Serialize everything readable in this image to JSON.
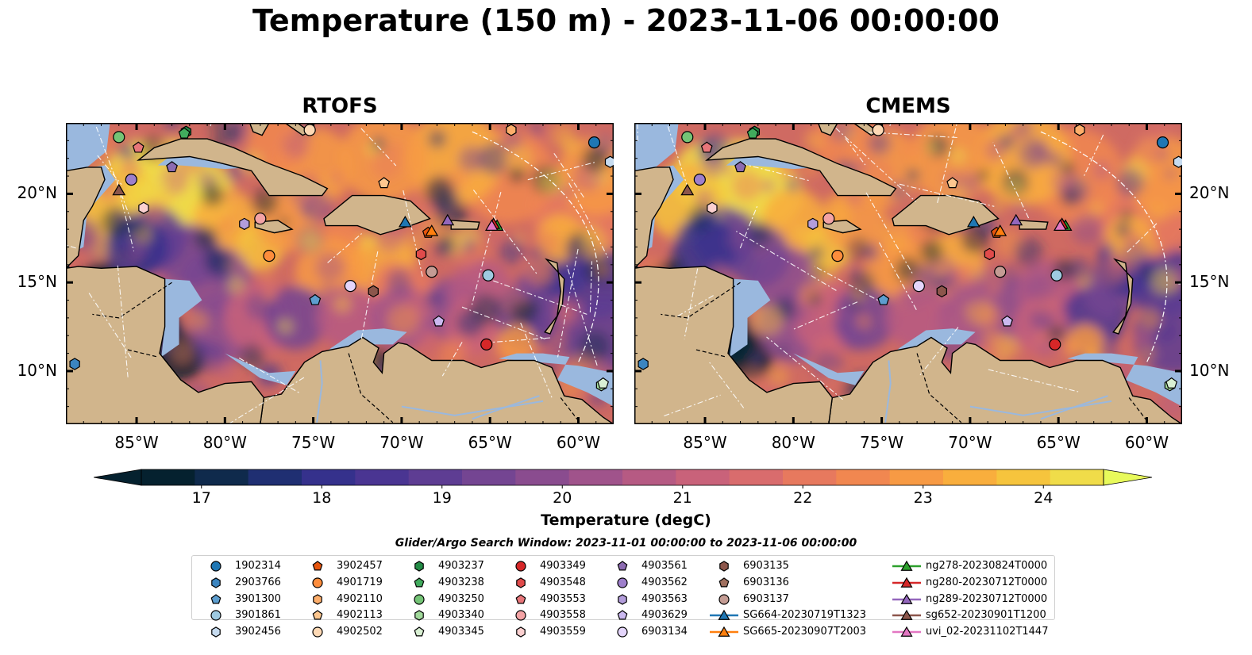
{
  "title": "Temperature (150 m) - 2023-11-06 00:00:00",
  "panels": [
    {
      "title": "RTOFS"
    },
    {
      "title": "CMEMS"
    }
  ],
  "axes": {
    "lon_ticks": [
      "85°W",
      "80°W",
      "75°W",
      "70°W",
      "65°W",
      "60°W"
    ],
    "lat_ticks": [
      "20°N",
      "15°N",
      "10°N"
    ],
    "lon_range": [
      -89,
      -58
    ],
    "lat_range": [
      7,
      24
    ]
  },
  "colorbar": {
    "label": "Temperature (degC)",
    "ticks": [
      "17",
      "18",
      "19",
      "20",
      "21",
      "22",
      "23",
      "24"
    ],
    "range": [
      16.5,
      24.5
    ],
    "colors": [
      "#05212f",
      "#0f2a4c",
      "#1f2f72",
      "#35318c",
      "#4a3592",
      "#5e3d93",
      "#744592",
      "#8a4c8f",
      "#a0538b",
      "#b65a83",
      "#c9627a",
      "#d96c6d",
      "#e7795e",
      "#f18750",
      "#f79a44",
      "#f9ae3d",
      "#f6c43d",
      "#f0dc49"
    ],
    "extend_over_color": "#e8fa5b"
  },
  "map_colors": {
    "land": "#d1b58c",
    "shelf": "#9ab8de",
    "coast": "#000000",
    "track": "#ffffff"
  },
  "search_window": "Glider/Argo Search Window: 2023-11-01 00:00:00 to 2023-11-06 00:00:00",
  "legend": [
    {
      "label": "1902314",
      "marker": "circle",
      "color": "#1f77b4"
    },
    {
      "label": "2903766",
      "marker": "hexagon",
      "color": "#3b85c0"
    },
    {
      "label": "3901300",
      "marker": "pentagon",
      "color": "#5d9ecf"
    },
    {
      "label": "3901861",
      "marker": "circle",
      "color": "#9ecae1"
    },
    {
      "label": "3902456",
      "marker": "hexagon",
      "color": "#c6dbef"
    },
    {
      "label": "3902457",
      "marker": "pentagon",
      "color": "#e6550d"
    },
    {
      "label": "4901719",
      "marker": "circle",
      "color": "#fd8d3c"
    },
    {
      "label": "4902110",
      "marker": "hexagon",
      "color": "#fdae6b"
    },
    {
      "label": "4902113",
      "marker": "pentagon",
      "color": "#fdc78f"
    },
    {
      "label": "4902502",
      "marker": "circle",
      "color": "#fdd9b5"
    },
    {
      "label": "4903237",
      "marker": "hexagon",
      "color": "#238b45"
    },
    {
      "label": "4903238",
      "marker": "pentagon",
      "color": "#41ab5d"
    },
    {
      "label": "4903250",
      "marker": "circle",
      "color": "#74c476"
    },
    {
      "label": "4903340",
      "marker": "hexagon",
      "color": "#a1d99b"
    },
    {
      "label": "4903345",
      "marker": "pentagon",
      "color": "#d9f0d3"
    },
    {
      "label": "4903349",
      "marker": "circle",
      "color": "#d62728"
    },
    {
      "label": "4903548",
      "marker": "hexagon",
      "color": "#e04b4b"
    },
    {
      "label": "4903553",
      "marker": "pentagon",
      "color": "#e8767a"
    },
    {
      "label": "4903558",
      "marker": "circle",
      "color": "#f4a3a5"
    },
    {
      "label": "4903559",
      "marker": "hexagon",
      "color": "#fbd0d0"
    },
    {
      "label": "4903561",
      "marker": "pentagon",
      "color": "#8c6bb1"
    },
    {
      "label": "4903562",
      "marker": "circle",
      "color": "#9e7fcb"
    },
    {
      "label": "4903563",
      "marker": "hexagon",
      "color": "#b39ddb"
    },
    {
      "label": "4903629",
      "marker": "pentagon",
      "color": "#cbb9f0"
    },
    {
      "label": "6903134",
      "marker": "circle",
      "color": "#e4d5fb"
    },
    {
      "label": "6903135",
      "marker": "hexagon",
      "color": "#8c564b"
    },
    {
      "label": "6903136",
      "marker": "pentagon",
      "color": "#a0705f"
    },
    {
      "label": "6903137",
      "marker": "circle",
      "color": "#c49c94"
    },
    {
      "label": "SG664-20230719T1323",
      "marker": "triangle-line",
      "color": "#1f77b4"
    },
    {
      "label": "SG665-20230907T2003",
      "marker": "triangle-line",
      "color": "#ff7f0e"
    },
    {
      "label": "ng278-20230824T0000",
      "marker": "triangle-line",
      "color": "#2ca02c"
    },
    {
      "label": "ng280-20230712T0000",
      "marker": "triangle-line",
      "color": "#d62728"
    },
    {
      "label": "ng289-20230712T0000",
      "marker": "triangle-line",
      "color": "#9467bd"
    },
    {
      "label": "sg652-20230901T1200",
      "marker": "triangle-line",
      "color": "#8c564b"
    },
    {
      "label": "uvi_02-20231102T1447",
      "marker": "triangle-line",
      "color": "#e377c2"
    }
  ],
  "platforms": [
    {
      "id": "1902314",
      "lon": -59.1,
      "lat": 22.9
    },
    {
      "id": "2903766",
      "lon": -88.5,
      "lat": 10.4
    },
    {
      "id": "3901300",
      "lon": -74.9,
      "lat": 14.0
    },
    {
      "id": "3901861",
      "lon": -65.1,
      "lat": 15.4
    },
    {
      "id": "3902456",
      "lon": -58.2,
      "lat": 21.8
    },
    {
      "id": "3902457",
      "lon": -68.5,
      "lat": 17.8
    },
    {
      "id": "4901719",
      "lon": -77.5,
      "lat": 16.5
    },
    {
      "id": "4902110",
      "lon": -63.8,
      "lat": 23.6
    },
    {
      "id": "4902113",
      "lon": -71.0,
      "lat": 20.6
    },
    {
      "id": "4902502",
      "lon": -75.2,
      "lat": 23.6
    },
    {
      "id": "4903237",
      "lon": -82.2,
      "lat": 23.5
    },
    {
      "id": "4903238",
      "lon": -82.3,
      "lat": 23.4
    },
    {
      "id": "4903250",
      "lon": -86.0,
      "lat": 23.2
    },
    {
      "id": "4903340",
      "lon": -58.7,
      "lat": 9.2
    },
    {
      "id": "4903345",
      "lon": -58.6,
      "lat": 9.3
    },
    {
      "id": "4903349",
      "lon": -65.2,
      "lat": 11.5
    },
    {
      "id": "4903548",
      "lon": -68.9,
      "lat": 16.6
    },
    {
      "id": "4903553",
      "lon": -84.9,
      "lat": 22.6
    },
    {
      "id": "4903558",
      "lon": -78.0,
      "lat": 18.6
    },
    {
      "id": "4903559",
      "lon": -84.6,
      "lat": 19.2
    },
    {
      "id": "4903561",
      "lon": -83.0,
      "lat": 21.5
    },
    {
      "id": "4903562",
      "lon": -85.3,
      "lat": 20.8
    },
    {
      "id": "4903563",
      "lon": -78.9,
      "lat": 18.3
    },
    {
      "id": "4903629",
      "lon": -67.9,
      "lat": 12.8
    },
    {
      "id": "6903134",
      "lon": -72.9,
      "lat": 14.8
    },
    {
      "id": "6903135",
      "lon": -71.6,
      "lat": 14.5
    },
    {
      "id": "6903136",
      "lon": -68.3,
      "lat": 15.6
    },
    {
      "id": "6903137",
      "lon": -68.3,
      "lat": 15.6
    },
    {
      "id": "SG664-20230719T1323",
      "lon": -69.8,
      "lat": 18.4
    },
    {
      "id": "SG665-20230907T2003",
      "lon": -68.3,
      "lat": 17.9
    },
    {
      "id": "ng278-20230824T0000",
      "lon": -64.6,
      "lat": 18.2
    },
    {
      "id": "ng280-20230712T0000",
      "lon": -64.8,
      "lat": 18.3
    },
    {
      "id": "ng289-20230712T0000",
      "lon": -67.4,
      "lat": 18.5
    },
    {
      "id": "sg652-20230901T1200",
      "lon": -86.0,
      "lat": 20.2
    },
    {
      "id": "uvi_02-20231102T1447",
      "lon": -64.9,
      "lat": 18.2
    }
  ]
}
